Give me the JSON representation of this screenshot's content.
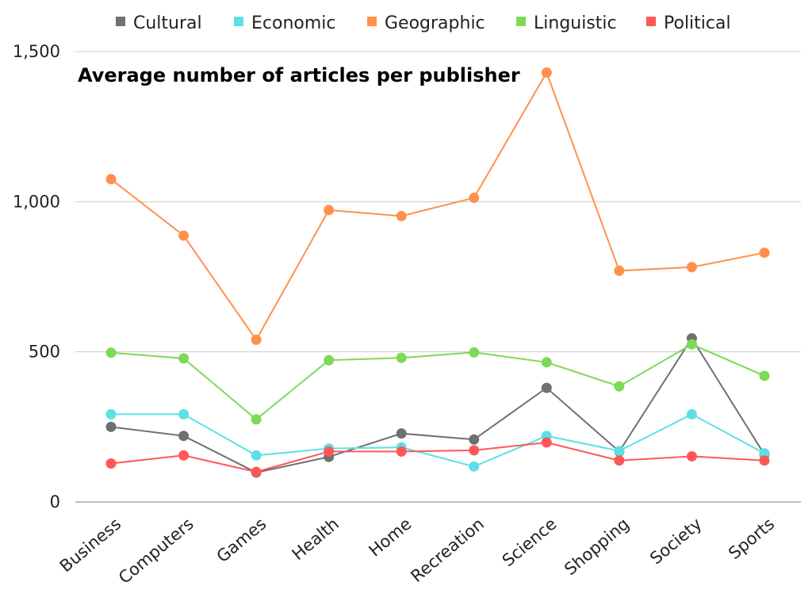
{
  "chart_data": {
    "type": "line",
    "title": "Average number of articles per publisher",
    "xlabel": "",
    "ylabel": "",
    "ylim": [
      0,
      1500
    ],
    "yticks": [
      0,
      500,
      1000,
      1500
    ],
    "ytick_labels": [
      "0",
      "500",
      "1,000",
      "1,500"
    ],
    "grid": true,
    "legend_position": "top",
    "categories": [
      "Business",
      "Computers",
      "Games",
      "Health",
      "Home",
      "Recreation",
      "Science",
      "Shopping",
      "Society",
      "Sports"
    ],
    "series": [
      {
        "name": "Cultural",
        "color": "#707070",
        "values": [
          250,
          220,
          98,
          150,
          228,
          208,
          380,
          168,
          545,
          158
        ]
      },
      {
        "name": "Economic",
        "color": "#5ce0e6",
        "values": [
          292,
          292,
          155,
          178,
          182,
          118,
          220,
          170,
          292,
          162
        ]
      },
      {
        "name": "Geographic",
        "color": "#ff914d",
        "values": [
          1075,
          887,
          540,
          972,
          952,
          1013,
          1430,
          770,
          782,
          830
        ]
      },
      {
        "name": "Linguistic",
        "color": "#7ed957",
        "values": [
          497,
          478,
          275,
          472,
          480,
          498,
          465,
          385,
          525,
          420
        ]
      },
      {
        "name": "Political",
        "color": "#ff5757",
        "values": [
          128,
          155,
          100,
          168,
          168,
          172,
          198,
          138,
          152,
          138
        ]
      }
    ]
  }
}
